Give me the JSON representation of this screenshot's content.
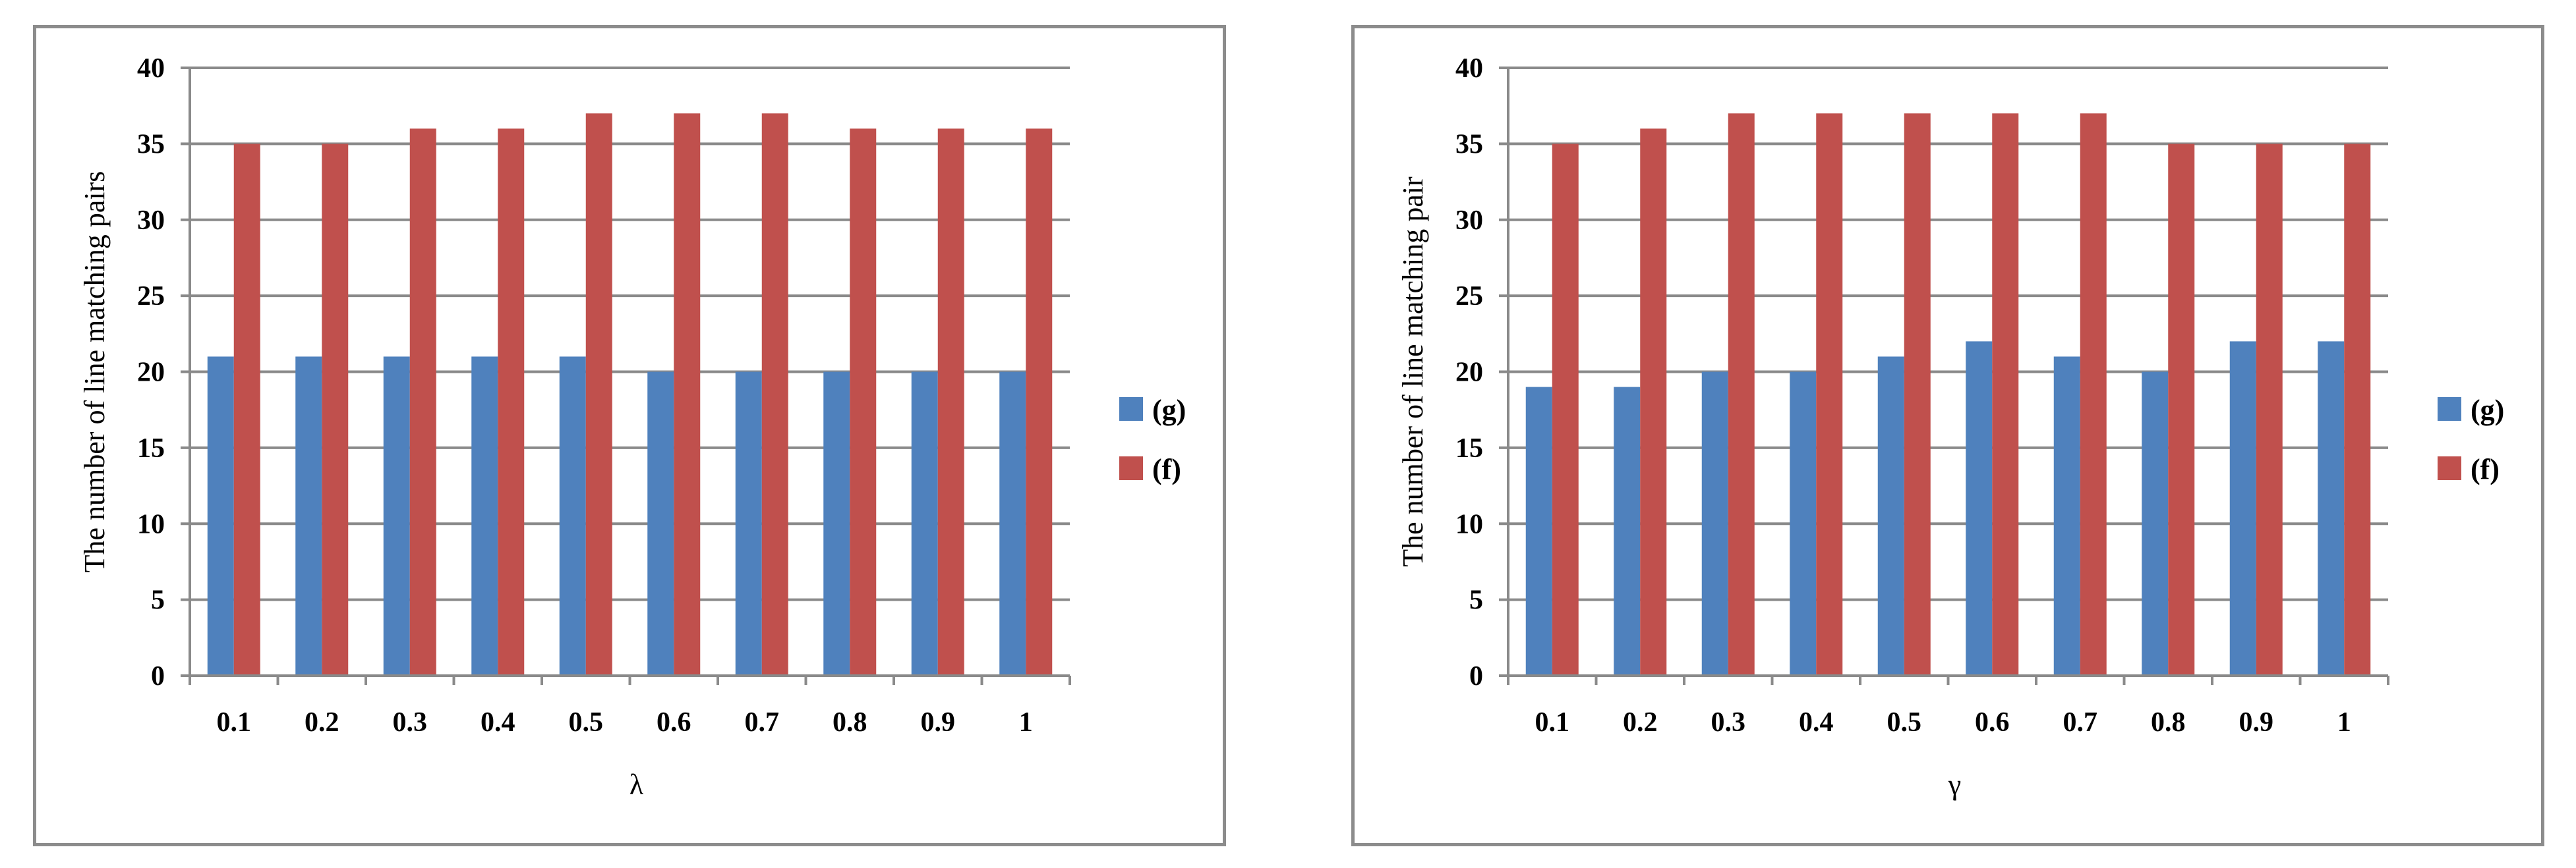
{
  "chart_data": [
    {
      "type": "bar",
      "categories": [
        "0.1",
        "0.2",
        "0.3",
        "0.4",
        "0.5",
        "0.6",
        "0.7",
        "0.8",
        "0.9",
        "1"
      ],
      "series": [
        {
          "name": "(g)",
          "color": "#4f81bd",
          "values": [
            21,
            21,
            21,
            21,
            21,
            20,
            20,
            20,
            20,
            20
          ]
        },
        {
          "name": "(f)",
          "color": "#c0504d",
          "values": [
            35,
            35,
            36,
            36,
            37,
            37,
            37,
            36,
            36,
            36
          ]
        }
      ],
      "title": "",
      "xlabel": "λ",
      "ylabel": "The number of line matching pairs",
      "ylim": [
        0,
        40
      ],
      "yticks": [
        "0",
        "5",
        "10",
        "15",
        "20",
        "25",
        "30",
        "35",
        "40"
      ],
      "grid": true,
      "legend": "right"
    },
    {
      "type": "bar",
      "categories": [
        "0.1",
        "0.2",
        "0.3",
        "0.4",
        "0.5",
        "0.6",
        "0.7",
        "0.8",
        "0.9",
        "1"
      ],
      "series": [
        {
          "name": "(g)",
          "color": "#4f81bd",
          "values": [
            19,
            19,
            20,
            20,
            21,
            22,
            21,
            20,
            22,
            22
          ]
        },
        {
          "name": "(f)",
          "color": "#c0504d",
          "values": [
            35,
            36,
            37,
            37,
            37,
            37,
            37,
            35,
            35,
            35
          ]
        }
      ],
      "title": "",
      "xlabel": "γ",
      "ylabel": "The number of line matching pair",
      "ylim": [
        0,
        40
      ],
      "yticks": [
        "0",
        "5",
        "10",
        "15",
        "20",
        "25",
        "30",
        "35",
        "40"
      ],
      "grid": true,
      "legend": "right"
    }
  ]
}
